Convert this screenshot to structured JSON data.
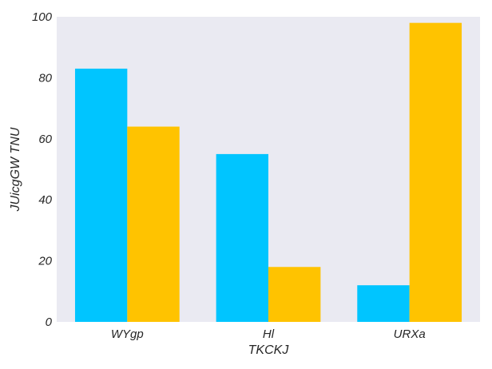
{
  "chart_data": {
    "type": "bar",
    "categories": [
      "WYgp",
      "Hl",
      "URXa"
    ],
    "series": [
      {
        "values": [
          83,
          55,
          12
        ],
        "color": "#00c5ff"
      },
      {
        "values": [
          64,
          18,
          98
        ],
        "color": "#ffc300"
      }
    ],
    "xlabel": "TKCKJ",
    "ylabel": "JUicgGW TNU",
    "ylim": [
      0,
      100
    ],
    "yticks": [
      0,
      20,
      40,
      60,
      80,
      100
    ],
    "grid": false,
    "legend": "none",
    "plot_background": "#eaeaf2"
  }
}
